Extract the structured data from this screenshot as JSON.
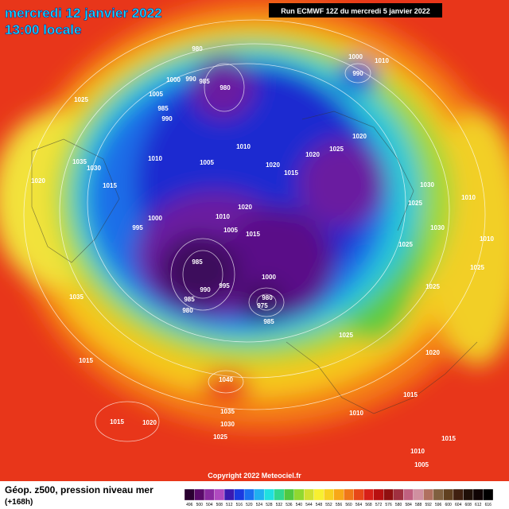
{
  "header": {
    "date": "mercredi 12 janvier 2022",
    "time": "13:00 locale",
    "run": "Run ECMWF 12Z du mercredi 5 janvier 2022"
  },
  "footer": {
    "title": "Géop. z500, pression niveau mer",
    "lead": "(+168h)",
    "copyright": "Copyright 2022 Meteociel.fr"
  },
  "colorbar": {
    "labels": [
      496,
      500,
      504,
      508,
      512,
      516,
      520,
      524,
      528,
      532,
      536,
      540,
      544,
      548,
      552,
      556,
      560,
      564,
      568,
      572,
      576,
      580,
      584,
      588,
      592,
      596,
      600,
      604,
      608,
      612,
      616
    ]
  },
  "map": {
    "isobar_labels": [
      980,
      1000,
      1010,
      990,
      1000,
      990,
      985,
      980,
      1005,
      1025,
      985,
      990,
      1010,
      1005,
      1020,
      1015,
      1010,
      1020,
      1025,
      1020,
      1035,
      1030,
      1020,
      1015,
      1000,
      995,
      1010,
      1005,
      1015,
      1020,
      1030,
      1025,
      1030,
      1025,
      985,
      990,
      995,
      985,
      980,
      1000,
      980,
      975,
      985,
      1025,
      1035,
      1015,
      1040,
      1015,
      1020,
      1035,
      1030,
      1025,
      1010,
      1015,
      1020,
      1025,
      1010,
      1025,
      1010,
      1010,
      1005,
      1015
    ]
  }
}
